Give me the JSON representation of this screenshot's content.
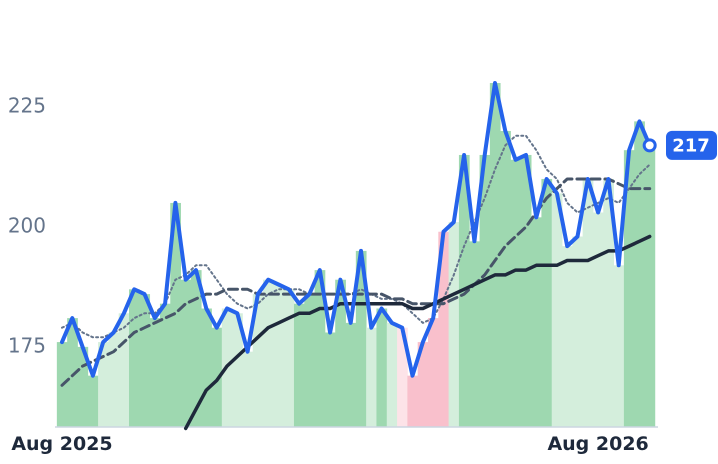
{
  "chart_data": {
    "type": "line",
    "categories": [
      "Aug 2025",
      null,
      null,
      null,
      null,
      null,
      null,
      null,
      null,
      null,
      null,
      null,
      null,
      null,
      null,
      null,
      null,
      null,
      null,
      null,
      null,
      null,
      null,
      null,
      null,
      null,
      null,
      null,
      null,
      null,
      null,
      null,
      null,
      null,
      null,
      null,
      null,
      null,
      null,
      null,
      null,
      null,
      null,
      null,
      null,
      null,
      null,
      null,
      null,
      null,
      null,
      null,
      "Aug 2026",
      null,
      null,
      null,
      null,
      null
    ],
    "series": [
      {
        "color": "#2563eb",
        "style": "solid",
        "width": 4,
        "values": [
          176,
          181,
          175,
          169,
          176,
          178,
          182,
          187,
          186,
          181,
          184,
          205,
          189,
          191,
          183,
          179,
          183,
          182,
          174,
          186,
          189,
          188,
          187,
          184,
          186,
          191,
          178,
          189,
          180,
          195,
          179,
          183,
          180,
          179,
          169,
          176,
          181,
          199,
          201,
          215,
          197,
          215,
          230,
          220,
          214,
          215,
          202,
          210,
          207,
          196,
          198,
          210,
          203,
          210,
          192,
          216,
          222,
          217
        ]
      },
      {
        "color": "#64748b",
        "style": "dotted",
        "width": 2,
        "values": [
          179,
          180,
          178,
          177,
          177,
          178,
          179,
          181,
          182,
          182,
          184,
          189,
          190,
          192,
          192,
          189,
          186,
          184,
          183,
          184,
          186,
          187,
          187,
          187,
          186,
          186,
          186,
          186,
          186,
          187,
          186,
          185,
          185,
          184,
          182,
          180,
          181,
          185,
          190,
          196,
          201,
          206,
          212,
          217,
          219,
          219,
          216,
          212,
          210,
          205,
          203,
          204,
          205,
          206,
          205,
          208,
          211,
          213
        ]
      },
      {
        "color": "#475569",
        "style": "dashed",
        "width": 3,
        "values": [
          167,
          169,
          171,
          172,
          173,
          174,
          176,
          178,
          179,
          180,
          181,
          182,
          184,
          185,
          186,
          186,
          187,
          187,
          187,
          186,
          186,
          186,
          186,
          186,
          186,
          186,
          186,
          186,
          186,
          186,
          186,
          186,
          185,
          185,
          184,
          184,
          184,
          184,
          185,
          186,
          188,
          190,
          193,
          196,
          198,
          200,
          203,
          206,
          208,
          210,
          210,
          210,
          210,
          210,
          209,
          208,
          208,
          208
        ]
      },
      {
        "color": "#1e293b",
        "style": "solid",
        "width": 3.5,
        "values": [
          null,
          null,
          null,
          null,
          null,
          null,
          null,
          null,
          null,
          null,
          null,
          null,
          158,
          162,
          166,
          168,
          171,
          173,
          175,
          177,
          179,
          180,
          181,
          182,
          182,
          183,
          183,
          184,
          184,
          184,
          184,
          184,
          184,
          184,
          183,
          183,
          184,
          185,
          186,
          187,
          188,
          189,
          190,
          190,
          191,
          191,
          192,
          192,
          192,
          193,
          193,
          193,
          194,
          195,
          195,
          196,
          197,
          198
        ]
      }
    ],
    "band_colors": [
      "#9ed8b0",
      "#d4eedc",
      "#f9c0cc",
      "#fde3e8"
    ],
    "bands": [
      0,
      0,
      0,
      0,
      1,
      1,
      1,
      0,
      0,
      0,
      0,
      0,
      0,
      0,
      0,
      0,
      1,
      1,
      1,
      1,
      1,
      1,
      1,
      0,
      0,
      0,
      0,
      0,
      0,
      0,
      1,
      0,
      1,
      3,
      2,
      2,
      2,
      2,
      1,
      0,
      0,
      0,
      0,
      0,
      0,
      0,
      0,
      0,
      1,
      1,
      1,
      1,
      1,
      1,
      1,
      0,
      0,
      0
    ],
    "ylim": [
      158.3,
      247.3
    ],
    "yticks": [
      175,
      200,
      225
    ],
    "grid": false
  }
}
